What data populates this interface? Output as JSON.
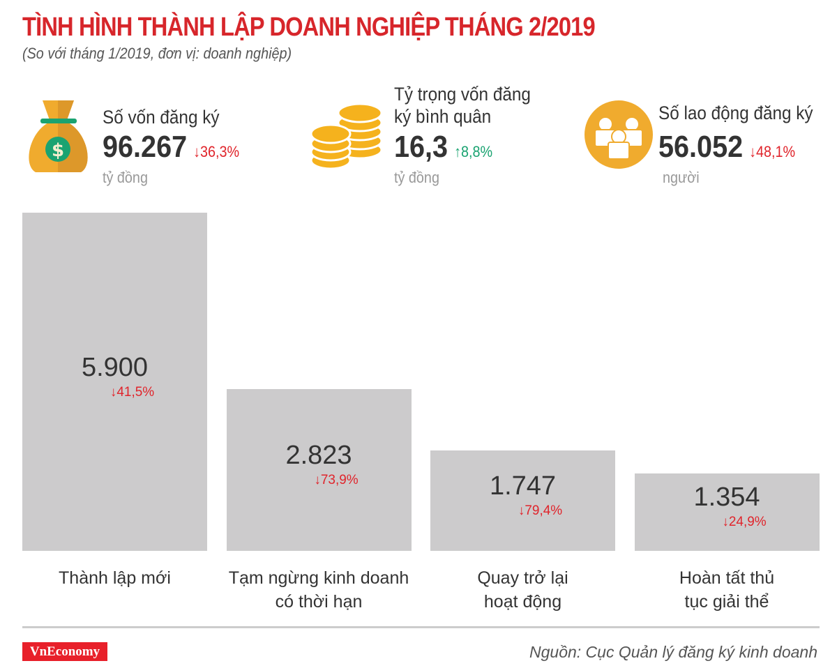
{
  "header": {
    "title": "TÌNH HÌNH THÀNH LẬP DOANH NGHIỆP THÁNG 2/2019",
    "subtitle": "(So với tháng 1/2019, đơn vị: doanh nghiệp)"
  },
  "kpis": [
    {
      "label": "Số vốn đăng ký",
      "value": "96.267",
      "change": "↓36,3%",
      "direction": "down",
      "unit": "tỷ đồng",
      "icon": "money-bag-icon"
    },
    {
      "label_line1": "Tỷ trọng vốn đăng",
      "label_line2": "ký bình quân",
      "value": "16,3",
      "change": "↑8,8%",
      "direction": "up",
      "unit": "tỷ đồng",
      "icon": "coins-icon"
    },
    {
      "label": "Số lao động đăng ký",
      "value": "56.052",
      "change": "↓48,1%",
      "direction": "down",
      "unit": "người",
      "icon": "people-icon"
    }
  ],
  "colors": {
    "title": "#d7262b",
    "bar": "#cccbcc",
    "down": "#e0242b",
    "up": "#1aa371",
    "icon": "#f0ab2e",
    "logo": "#e8202a"
  },
  "chart_data": {
    "type": "bar",
    "categories": [
      "Thành lập mới",
      "Tạm ngừng kinh doanh có thời hạn",
      "Quay trở lại hoạt động",
      "Hoàn tất thủ tục giải thể"
    ],
    "category_lines": [
      [
        "Thành lập mới"
      ],
      [
        "Tạm ngừng kinh doanh",
        "có thời hạn"
      ],
      [
        "Quay trở lại",
        "hoạt động"
      ],
      [
        "Hoàn tất thủ",
        "tục giải thể"
      ]
    ],
    "values": [
      5900,
      2823,
      1747,
      1354
    ],
    "value_labels": [
      "5.900",
      "2.823",
      "1.747",
      "1.354"
    ],
    "changes": [
      "↓41,5%",
      "↓73,9%",
      "↓79,4%",
      "↓24,9%"
    ],
    "ylim": [
      0,
      5900
    ],
    "grid": false
  },
  "footer": {
    "logo": "VnEconomy",
    "source": "Nguồn: Cục Quản lý đăng ký kinh doanh"
  }
}
